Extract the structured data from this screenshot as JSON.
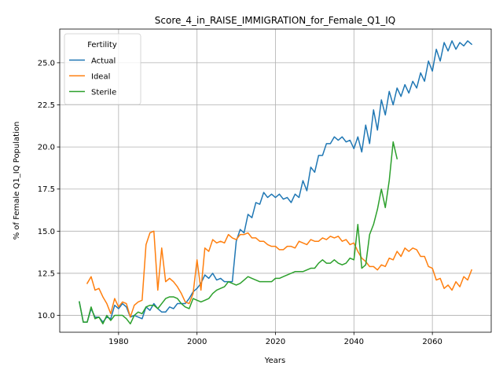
{
  "chart_data": {
    "type": "line",
    "title": "Score_4_in_RAISE_IMMIGRATION_for_Female_Q1_IQ",
    "xlabel": "Years",
    "ylabel": "% of Female Q1_IQ Population",
    "xlim": [
      1965,
      2075
    ],
    "ylim": [
      9.0,
      27.0
    ],
    "xticks": [
      1980,
      2000,
      2020,
      2040,
      2060
    ],
    "yticks": [
      10.0,
      12.5,
      15.0,
      17.5,
      20.0,
      22.5,
      25.0
    ],
    "ytick_labels": [
      "10.0",
      "12.5",
      "15.0",
      "17.5",
      "20.0",
      "22.5",
      "25.0"
    ],
    "grid": true,
    "legend": {
      "title": "Fertility",
      "placement": "top-left"
    },
    "colors": {
      "Actual": "#1f77b4",
      "Ideal": "#ff7f0e",
      "Sterile": "#2ca02c"
    },
    "series": [
      {
        "name": "Actual",
        "x": [
          1970,
          1971,
          1972,
          1973,
          1974,
          1975,
          1976,
          1977,
          1978,
          1979,
          1980,
          1981,
          1982,
          1983,
          1984,
          1985,
          1986,
          1987,
          1988,
          1989,
          1990,
          1991,
          1992,
          1993,
          1994,
          1995,
          1996,
          1997,
          1998,
          1999,
          2000,
          2001,
          2002,
          2003,
          2004,
          2005,
          2006,
          2007,
          2008,
          2009,
          2010,
          2011,
          2012,
          2013,
          2014,
          2015,
          2016,
          2017,
          2018,
          2019,
          2020,
          2021,
          2022,
          2023,
          2024,
          2025,
          2026,
          2027,
          2028,
          2029,
          2030,
          2031,
          2032,
          2033,
          2034,
          2035,
          2036,
          2037,
          2038,
          2039,
          2040,
          2041,
          2042,
          2043,
          2044,
          2045,
          2046,
          2047,
          2048,
          2049,
          2050,
          2051,
          2052,
          2053,
          2054,
          2055,
          2056,
          2057,
          2058,
          2059,
          2060,
          2061,
          2062,
          2063,
          2064,
          2065,
          2066,
          2067,
          2068,
          2069,
          2070
        ],
        "y": [
          10.8,
          9.6,
          9.6,
          10.4,
          9.9,
          9.9,
          9.6,
          9.9,
          9.8,
          10.6,
          10.4,
          10.7,
          10.5,
          9.9,
          10.0,
          9.9,
          9.8,
          10.5,
          10.3,
          10.7,
          10.4,
          10.2,
          10.2,
          10.5,
          10.4,
          10.7,
          10.7,
          10.7,
          11.0,
          11.4,
          11.6,
          11.9,
          12.4,
          12.2,
          12.5,
          12.1,
          12.2,
          12.0,
          12.0,
          12.0,
          14.4,
          15.1,
          14.9,
          16.0,
          15.8,
          16.7,
          16.6,
          17.3,
          17.0,
          17.2,
          17.0,
          17.2,
          16.9,
          17.0,
          16.7,
          17.2,
          17.0,
          18.0,
          17.4,
          18.8,
          18.5,
          19.5,
          19.5,
          20.2,
          20.2,
          20.6,
          20.4,
          20.6,
          20.3,
          20.4,
          19.9,
          20.6,
          19.7,
          21.3,
          20.2,
          22.2,
          21.0,
          22.8,
          21.9,
          23.3,
          22.5,
          23.5,
          23.0,
          23.7,
          23.2,
          23.9,
          23.5,
          24.4,
          23.9,
          25.1,
          24.5,
          25.8,
          25.1,
          26.2,
          25.7,
          26.3,
          25.8,
          26.2,
          26.0,
          26.3,
          26.1
        ]
      },
      {
        "name": "Ideal",
        "x": [
          1972,
          1973,
          1974,
          1975,
          1976,
          1977,
          1978,
          1979,
          1980,
          1981,
          1982,
          1983,
          1984,
          1985,
          1986,
          1987,
          1988,
          1989,
          1990,
          1991,
          1992,
          1993,
          1994,
          1995,
          1996,
          1997,
          1998,
          1999,
          2000,
          2001,
          2002,
          2003,
          2004,
          2005,
          2006,
          2007,
          2008,
          2009,
          2010,
          2011,
          2012,
          2013,
          2014,
          2015,
          2016,
          2017,
          2018,
          2019,
          2020,
          2021,
          2022,
          2023,
          2024,
          2025,
          2026,
          2027,
          2028,
          2029,
          2030,
          2031,
          2032,
          2033,
          2034,
          2035,
          2036,
          2037,
          2038,
          2039,
          2040,
          2041,
          2042,
          2043,
          2044,
          2045,
          2046,
          2047,
          2048,
          2049,
          2050,
          2051,
          2052,
          2053,
          2054,
          2055,
          2056,
          2057,
          2058,
          2059,
          2060,
          2061,
          2062,
          2063,
          2064,
          2065,
          2066,
          2067,
          2068,
          2069,
          2070
        ],
        "y": [
          11.9,
          12.3,
          11.5,
          11.6,
          11.1,
          10.7,
          10.1,
          11.0,
          10.5,
          10.8,
          10.7,
          9.9,
          10.6,
          10.8,
          10.9,
          14.2,
          14.9,
          15.0,
          11.5,
          14.0,
          12.0,
          12.2,
          12.0,
          11.7,
          11.3,
          10.8,
          10.7,
          11.3,
          13.3,
          11.5,
          14.0,
          13.8,
          14.5,
          14.3,
          14.4,
          14.3,
          14.8,
          14.6,
          14.5,
          14.8,
          14.8,
          14.9,
          14.6,
          14.6,
          14.4,
          14.4,
          14.2,
          14.1,
          14.1,
          13.9,
          13.9,
          14.1,
          14.1,
          14.0,
          14.4,
          14.3,
          14.2,
          14.5,
          14.4,
          14.4,
          14.6,
          14.5,
          14.7,
          14.6,
          14.7,
          14.4,
          14.5,
          14.2,
          14.3,
          13.8,
          13.4,
          13.2,
          12.9,
          12.9,
          12.7,
          13.0,
          12.9,
          13.4,
          13.3,
          13.8,
          13.5,
          14.0,
          13.8,
          14.0,
          13.9,
          13.5,
          13.5,
          12.9,
          12.8,
          12.1,
          12.2,
          11.6,
          11.8,
          11.5,
          12.0,
          11.7,
          12.3,
          12.1,
          12.7
        ]
      },
      {
        "name": "Sterile",
        "x": [
          1970,
          1971,
          1972,
          1973,
          1974,
          1975,
          1976,
          1977,
          1978,
          1979,
          1980,
          1981,
          1982,
          1983,
          1984,
          1985,
          1986,
          1987,
          1988,
          1989,
          1990,
          1991,
          1992,
          1993,
          1994,
          1995,
          1996,
          1997,
          1998,
          1999,
          2000,
          2001,
          2002,
          2003,
          2004,
          2005,
          2006,
          2007,
          2008,
          2009,
          2010,
          2011,
          2012,
          2013,
          2014,
          2015,
          2016,
          2017,
          2018,
          2019,
          2020,
          2021,
          2022,
          2023,
          2024,
          2025,
          2026,
          2027,
          2028,
          2029,
          2030,
          2031,
          2032,
          2033,
          2034,
          2035,
          2036,
          2037,
          2038,
          2039,
          2040,
          2041,
          2042,
          2043,
          2044,
          2045,
          2046,
          2047,
          2048,
          2049,
          2050,
          2051
        ],
        "y": [
          10.8,
          9.6,
          9.6,
          10.5,
          9.8,
          9.9,
          9.5,
          10.0,
          9.7,
          10.0,
          10.0,
          10.0,
          9.8,
          9.5,
          10.0,
          10.2,
          10.1,
          10.5,
          10.6,
          10.6,
          10.4,
          10.7,
          11.0,
          11.1,
          11.1,
          11.0,
          10.7,
          10.5,
          10.4,
          11.0,
          10.9,
          10.8,
          10.9,
          11.0,
          11.3,
          11.5,
          11.6,
          11.7,
          12.0,
          11.9,
          11.8,
          11.9,
          12.1,
          12.3,
          12.2,
          12.1,
          12.0,
          12.0,
          12.0,
          12.0,
          12.2,
          12.2,
          12.3,
          12.4,
          12.5,
          12.6,
          12.6,
          12.6,
          12.7,
          12.8,
          12.8,
          13.1,
          13.3,
          13.1,
          13.1,
          13.3,
          13.1,
          13.0,
          13.1,
          13.4,
          13.3,
          15.4,
          12.8,
          13.0,
          14.8,
          15.4,
          16.3,
          17.5,
          16.4,
          18.0,
          20.3,
          19.3
        ]
      }
    ]
  }
}
